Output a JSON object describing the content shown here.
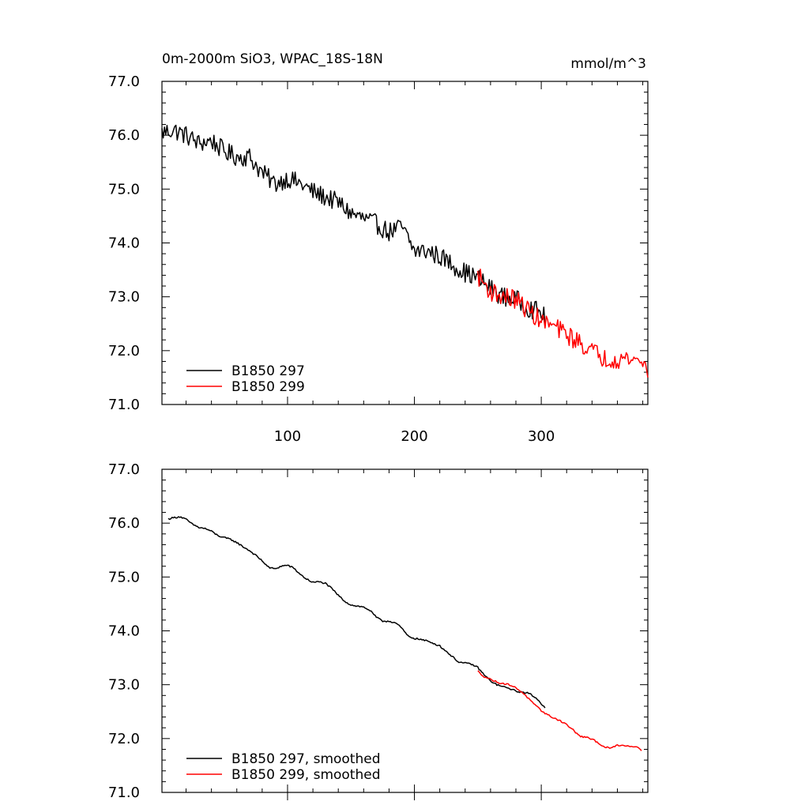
{
  "chart_data": [
    {
      "type": "line",
      "title": "0m-2000m SiO3, WPAC_18S-18N",
      "units": "mmol/m^3",
      "xlim": [
        1,
        384
      ],
      "ylim": [
        71.0,
        77.0
      ],
      "x_ticks": [
        100,
        200,
        300
      ],
      "y_ticks": [
        "71.0",
        "72.0",
        "73.0",
        "74.0",
        "75.0",
        "76.0",
        "77.0"
      ],
      "legend_position": "bottom-left",
      "series": [
        {
          "name": "B1850 297",
          "color": "#000000",
          "noise": 0.18,
          "anchors": [
            [
              1,
              76.05
            ],
            [
              10,
              76.1
            ],
            [
              20,
              76.0
            ],
            [
              30,
              75.85
            ],
            [
              40,
              75.9
            ],
            [
              50,
              75.7
            ],
            [
              60,
              75.6
            ],
            [
              70,
              75.6
            ],
            [
              80,
              75.3
            ],
            [
              90,
              75.1
            ],
            [
              100,
              75.2
            ],
            [
              110,
              75.1
            ],
            [
              120,
              74.95
            ],
            [
              130,
              74.85
            ],
            [
              140,
              74.75
            ],
            [
              150,
              74.55
            ],
            [
              160,
              74.45
            ],
            [
              170,
              74.35
            ],
            [
              180,
              74.2
            ],
            [
              190,
              74.3
            ],
            [
              200,
              73.85
            ],
            [
              210,
              73.85
            ],
            [
              220,
              73.75
            ],
            [
              230,
              73.6
            ],
            [
              240,
              73.45
            ],
            [
              250,
              73.35
            ],
            [
              260,
              73.15
            ],
            [
              270,
              73.0
            ],
            [
              280,
              72.95
            ],
            [
              290,
              72.8
            ],
            [
              300,
              72.7
            ],
            [
              303,
              72.6
            ]
          ]
        },
        {
          "name": "B1850 299",
          "color": "#ff0000",
          "noise": 0.18,
          "anchors": [
            [
              250,
              73.4
            ],
            [
              260,
              73.1
            ],
            [
              270,
              73.0
            ],
            [
              280,
              72.95
            ],
            [
              290,
              72.75
            ],
            [
              300,
              72.55
            ],
            [
              310,
              72.45
            ],
            [
              320,
              72.3
            ],
            [
              330,
              72.15
            ],
            [
              340,
              72.0
            ],
            [
              350,
              71.85
            ],
            [
              360,
              71.85
            ],
            [
              370,
              71.85
            ],
            [
              380,
              71.8
            ],
            [
              384,
              71.6
            ]
          ]
        }
      ]
    },
    {
      "type": "line",
      "xlim": [
        1,
        384
      ],
      "ylim": [
        71.0,
        77.0
      ],
      "y_ticks": [
        "71.0",
        "72.0",
        "73.0",
        "74.0",
        "75.0",
        "76.0",
        "77.0"
      ],
      "legend_position": "bottom-left",
      "series": [
        {
          "name": "B1850 297, smoothed",
          "color": "#000000",
          "noise": 0.015,
          "anchors": [
            [
              6,
              76.08
            ],
            [
              10,
              76.1
            ],
            [
              15,
              76.12
            ],
            [
              20,
              76.07
            ],
            [
              25,
              75.98
            ],
            [
              30,
              75.92
            ],
            [
              35,
              75.9
            ],
            [
              40,
              75.85
            ],
            [
              45,
              75.77
            ],
            [
              50,
              75.73
            ],
            [
              55,
              75.7
            ],
            [
              60,
              75.64
            ],
            [
              65,
              75.56
            ],
            [
              70,
              75.49
            ],
            [
              75,
              75.4
            ],
            [
              80,
              75.3
            ],
            [
              85,
              75.18
            ],
            [
              90,
              75.15
            ],
            [
              95,
              75.2
            ],
            [
              100,
              75.22
            ],
            [
              105,
              75.16
            ],
            [
              110,
              75.05
            ],
            [
              115,
              74.96
            ],
            [
              120,
              74.9
            ],
            [
              125,
              74.91
            ],
            [
              130,
              74.88
            ],
            [
              135,
              74.78
            ],
            [
              140,
              74.66
            ],
            [
              145,
              74.55
            ],
            [
              150,
              74.48
            ],
            [
              155,
              74.46
            ],
            [
              160,
              74.44
            ],
            [
              165,
              74.38
            ],
            [
              170,
              74.25
            ],
            [
              175,
              74.18
            ],
            [
              180,
              74.18
            ],
            [
              185,
              74.15
            ],
            [
              190,
              74.05
            ],
            [
              195,
              73.9
            ],
            [
              200,
              73.86
            ],
            [
              205,
              73.84
            ],
            [
              210,
              73.81
            ],
            [
              215,
              73.77
            ],
            [
              220,
              73.72
            ],
            [
              225,
              73.62
            ],
            [
              230,
              73.52
            ],
            [
              235,
              73.42
            ],
            [
              240,
              73.4
            ],
            [
              245,
              73.38
            ],
            [
              250,
              73.32
            ],
            [
              255,
              73.18
            ],
            [
              260,
              73.07
            ],
            [
              265,
              73.0
            ],
            [
              270,
              72.96
            ],
            [
              275,
              72.93
            ],
            [
              280,
              72.88
            ],
            [
              285,
              72.86
            ],
            [
              290,
              72.84
            ],
            [
              295,
              72.77
            ],
            [
              300,
              72.65
            ],
            [
              303,
              72.58
            ]
          ]
        },
        {
          "name": "B1850 299, smoothed",
          "color": "#ff0000",
          "noise": 0.015,
          "anchors": [
            [
              250,
              73.25
            ],
            [
              255,
              73.15
            ],
            [
              260,
              73.1
            ],
            [
              265,
              73.05
            ],
            [
              270,
              73.02
            ],
            [
              275,
              73.0
            ],
            [
              280,
              72.94
            ],
            [
              285,
              72.86
            ],
            [
              290,
              72.74
            ],
            [
              295,
              72.62
            ],
            [
              300,
              72.52
            ],
            [
              305,
              72.44
            ],
            [
              310,
              72.38
            ],
            [
              315,
              72.33
            ],
            [
              320,
              72.26
            ],
            [
              325,
              72.16
            ],
            [
              330,
              72.05
            ],
            [
              335,
              72.02
            ],
            [
              340,
              71.99
            ],
            [
              345,
              71.92
            ],
            [
              350,
              71.84
            ],
            [
              355,
              71.82
            ],
            [
              360,
              71.88
            ],
            [
              365,
              71.87
            ],
            [
              370,
              71.86
            ],
            [
              375,
              71.85
            ],
            [
              379,
              71.79
            ]
          ]
        }
      ]
    }
  ]
}
